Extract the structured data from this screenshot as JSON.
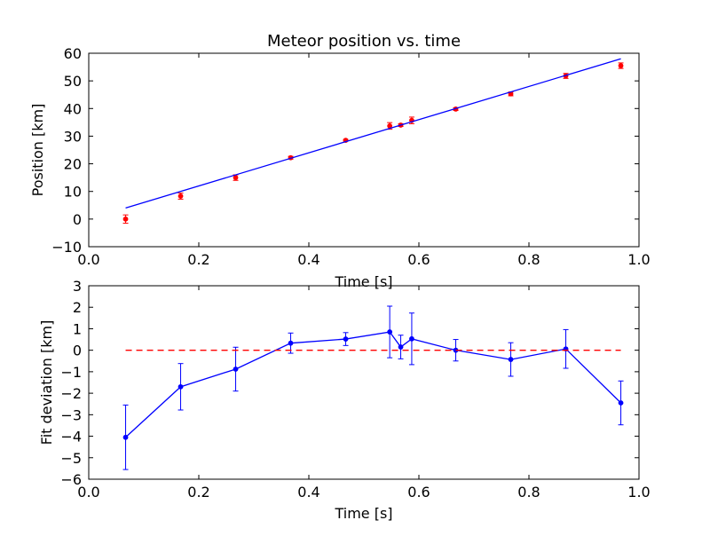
{
  "chart_data": [
    {
      "type": "scatter",
      "title": "Meteor position vs. time",
      "xlabel": "Time [s]",
      "ylabel": "Position [km]",
      "xlim": [
        0.0,
        1.0
      ],
      "ylim": [
        -10,
        60
      ],
      "xticks": [
        "0.0",
        "0.2",
        "0.4",
        "0.6",
        "0.8",
        "1.0"
      ],
      "yticks": [
        "−10",
        "0",
        "10",
        "20",
        "30",
        "40",
        "50",
        "60"
      ],
      "grid": false,
      "series": [
        {
          "kind": "errorbar-points",
          "color": "#ff0000",
          "x": [
            0.067,
            0.167,
            0.267,
            0.367,
            0.467,
            0.547,
            0.567,
            0.587,
            0.667,
            0.767,
            0.867,
            0.967
          ],
          "y": [
            0.0,
            8.3,
            15.0,
            22.2,
            28.5,
            33.7,
            34.0,
            35.7,
            39.8,
            45.3,
            51.8,
            55.5
          ],
          "err": [
            1.5,
            1.1,
            1.0,
            0.5,
            0.3,
            1.2,
            0.5,
            1.2,
            0.5,
            0.7,
            0.9,
            1.0
          ]
        },
        {
          "kind": "fit-line",
          "color": "#0000ff",
          "x": [
            0.067,
            0.967
          ],
          "y": [
            4.0,
            58.0
          ]
        }
      ]
    },
    {
      "type": "line",
      "xlabel": "Time [s]",
      "ylabel": "Fit deviation [km]",
      "xlim": [
        0.0,
        1.0
      ],
      "ylim": [
        -6,
        3
      ],
      "xticks": [
        "0.0",
        "0.2",
        "0.4",
        "0.6",
        "0.8",
        "1.0"
      ],
      "yticks": [
        "−6",
        "−5",
        "−4",
        "−3",
        "−2",
        "−1",
        "0",
        "1",
        "2",
        "3"
      ],
      "grid": false,
      "series": [
        {
          "kind": "errorbar-line",
          "color": "#0000ff",
          "x": [
            0.067,
            0.167,
            0.267,
            0.367,
            0.467,
            0.547,
            0.567,
            0.587,
            0.667,
            0.767,
            0.867,
            0.967
          ],
          "y": [
            -4.05,
            -1.7,
            -0.88,
            0.33,
            0.52,
            0.85,
            0.15,
            0.53,
            0.0,
            -0.43,
            0.06,
            -2.45
          ],
          "err": [
            1.5,
            1.08,
            1.02,
            0.47,
            0.3,
            1.2,
            0.55,
            1.2,
            0.5,
            0.78,
            0.9,
            1.02
          ]
        },
        {
          "kind": "reference-dashed",
          "color": "#ff0000",
          "x": [
            0.067,
            0.967
          ],
          "y": [
            0,
            0
          ]
        }
      ]
    }
  ]
}
